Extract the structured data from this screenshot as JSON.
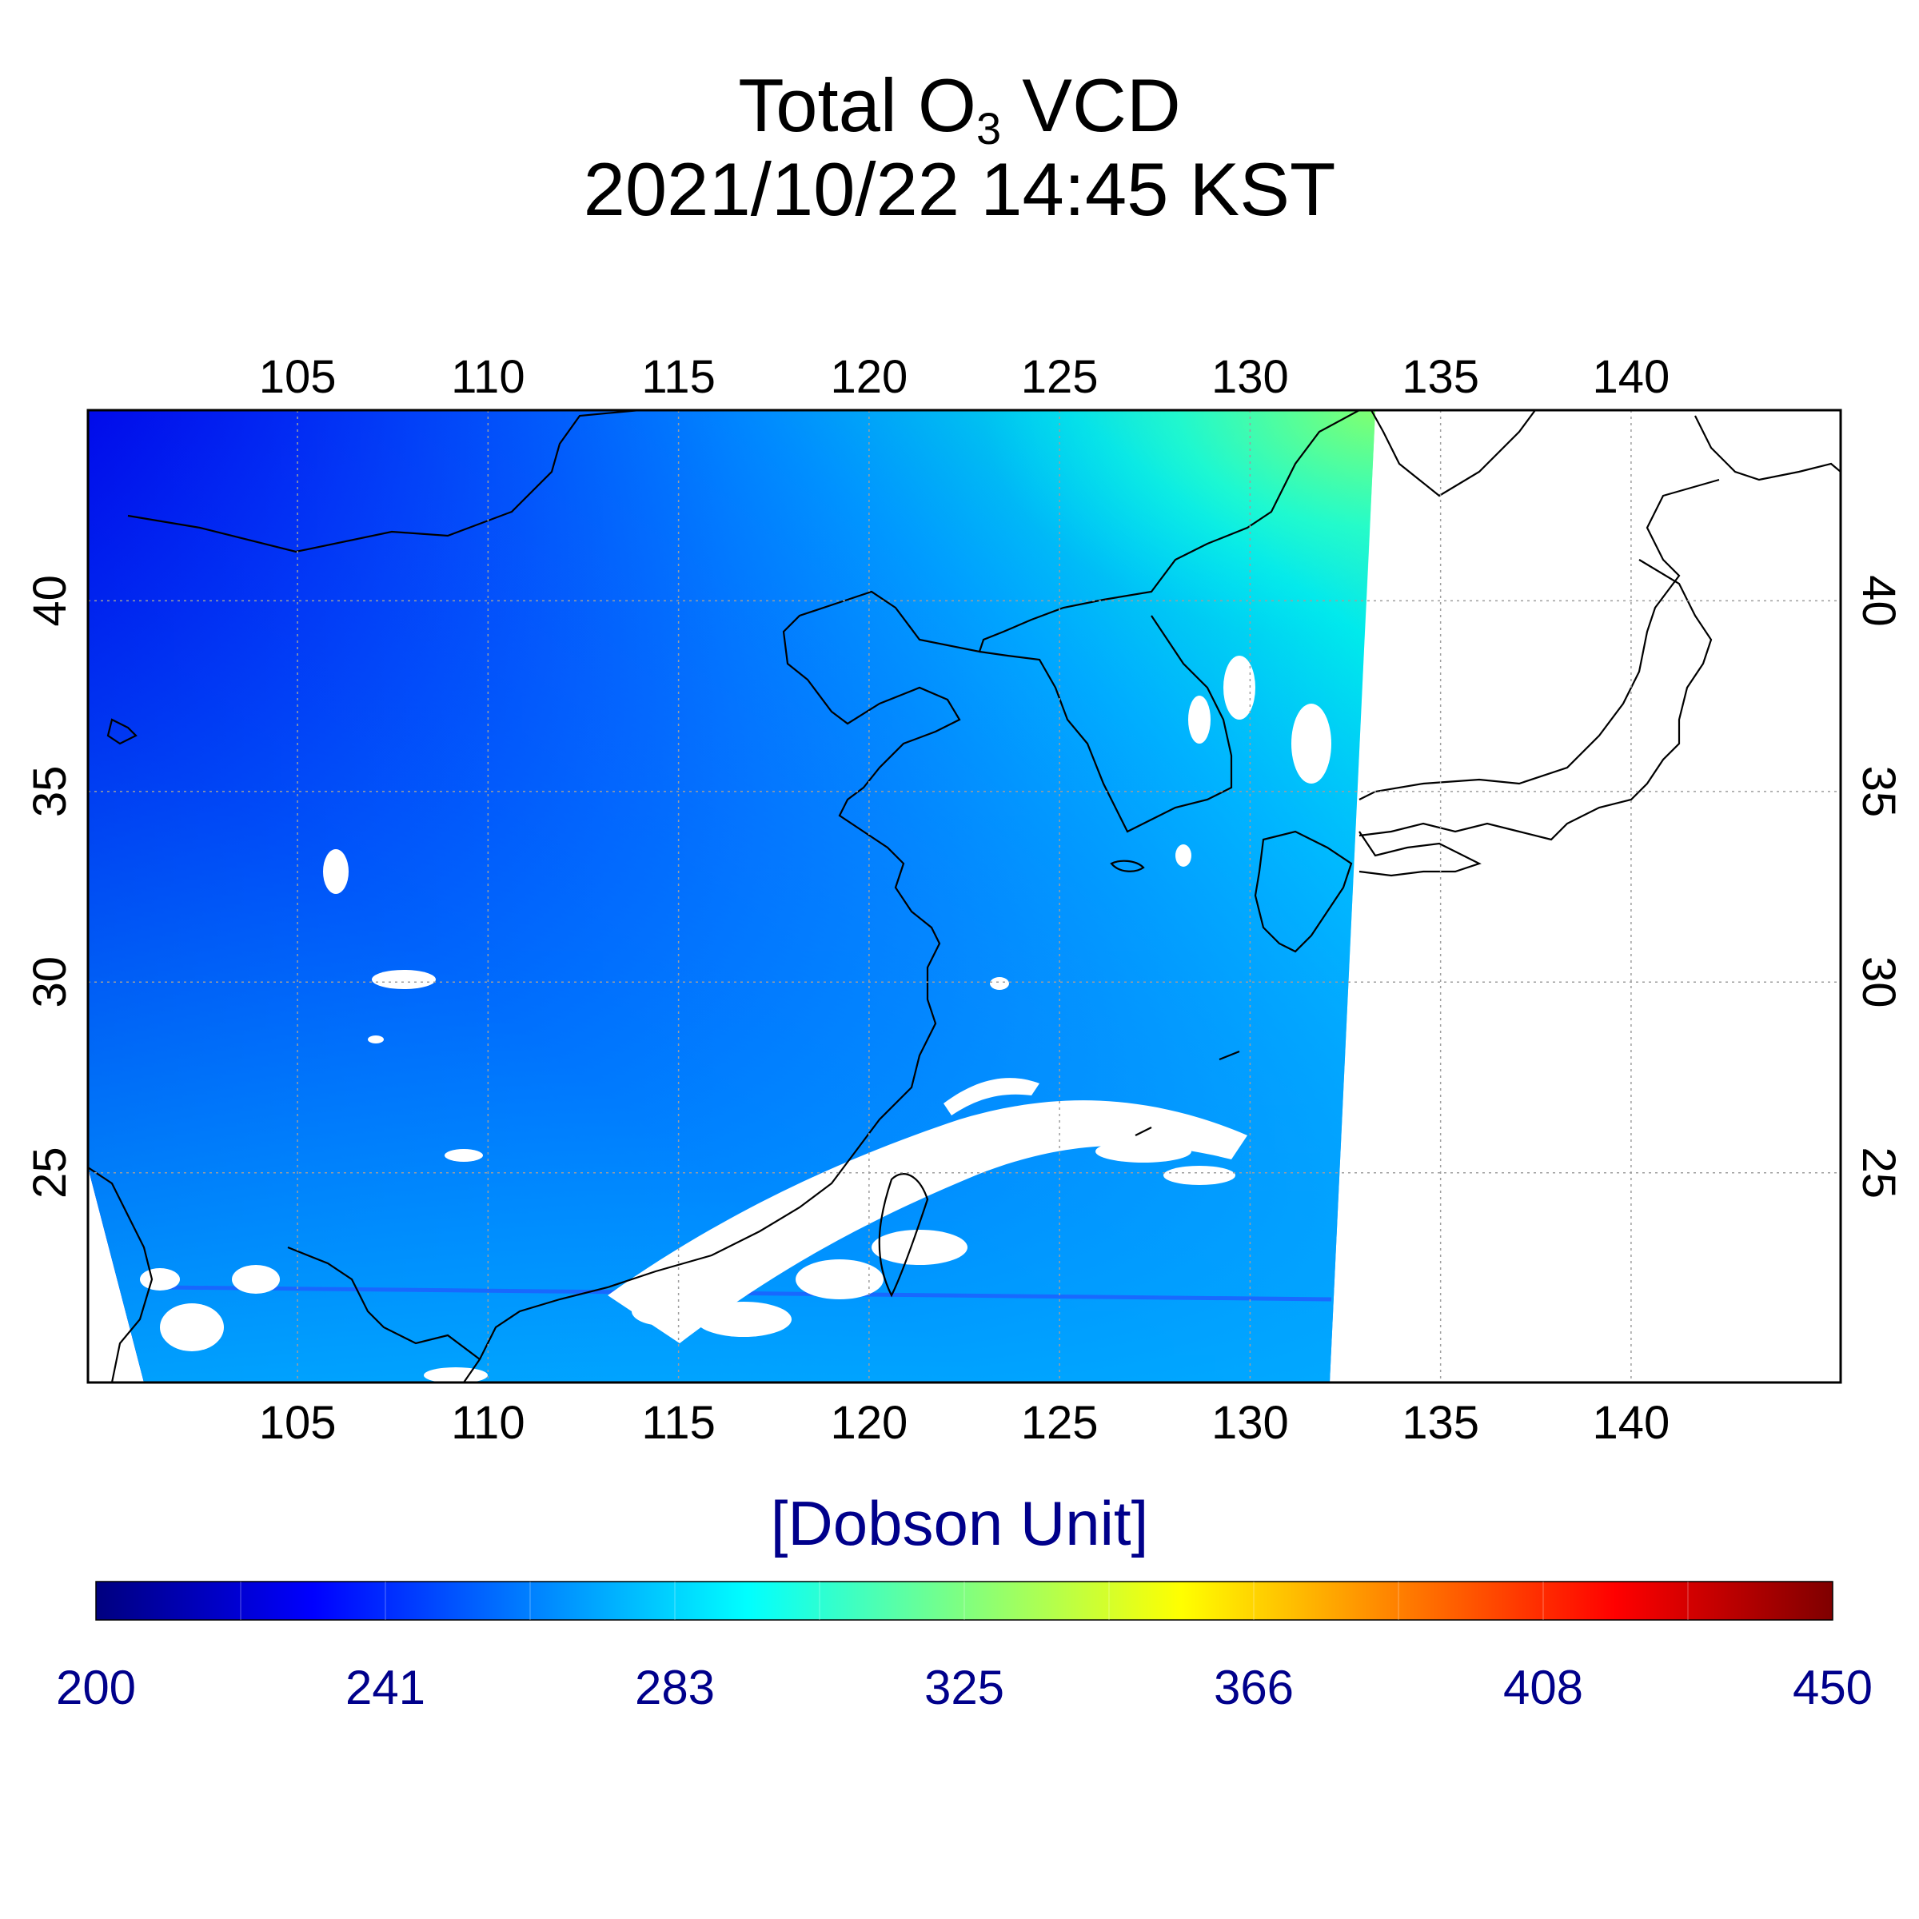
{
  "title": {
    "line1_prefix": "Total O",
    "line1_sub": "3",
    "line1_suffix": " VCD",
    "line2": "2021/10/22 14:45 KST"
  },
  "map": {
    "lon_ticks": [
      "105",
      "110",
      "115",
      "120",
      "125",
      "130",
      "135",
      "140"
    ],
    "lat_ticks": [
      "25",
      "30",
      "35",
      "40"
    ],
    "lon_range": [
      99.5,
      145.5
    ],
    "lat_range": [
      19.5,
      45.0
    ],
    "grid": true,
    "projection": "cylindrical",
    "colors": {
      "low": "#0000ff",
      "mid": "#00a0ff",
      "high": "#00ffe0",
      "peak": "#70ff70",
      "no_data": "#ffffff",
      "coastline": "#000000"
    }
  },
  "colorbar": {
    "title": "[Dobson Unit]",
    "labels": [
      "200",
      "241",
      "283",
      "325",
      "366",
      "408",
      "450"
    ],
    "range": [
      200,
      450
    ],
    "colormap": [
      "#00007f",
      "#0000ff",
      "#0080ff",
      "#00ffff",
      "#80ff80",
      "#ffff00",
      "#ff8000",
      "#ff0000",
      "#7f0000"
    ],
    "label_color": "#00008b"
  }
}
